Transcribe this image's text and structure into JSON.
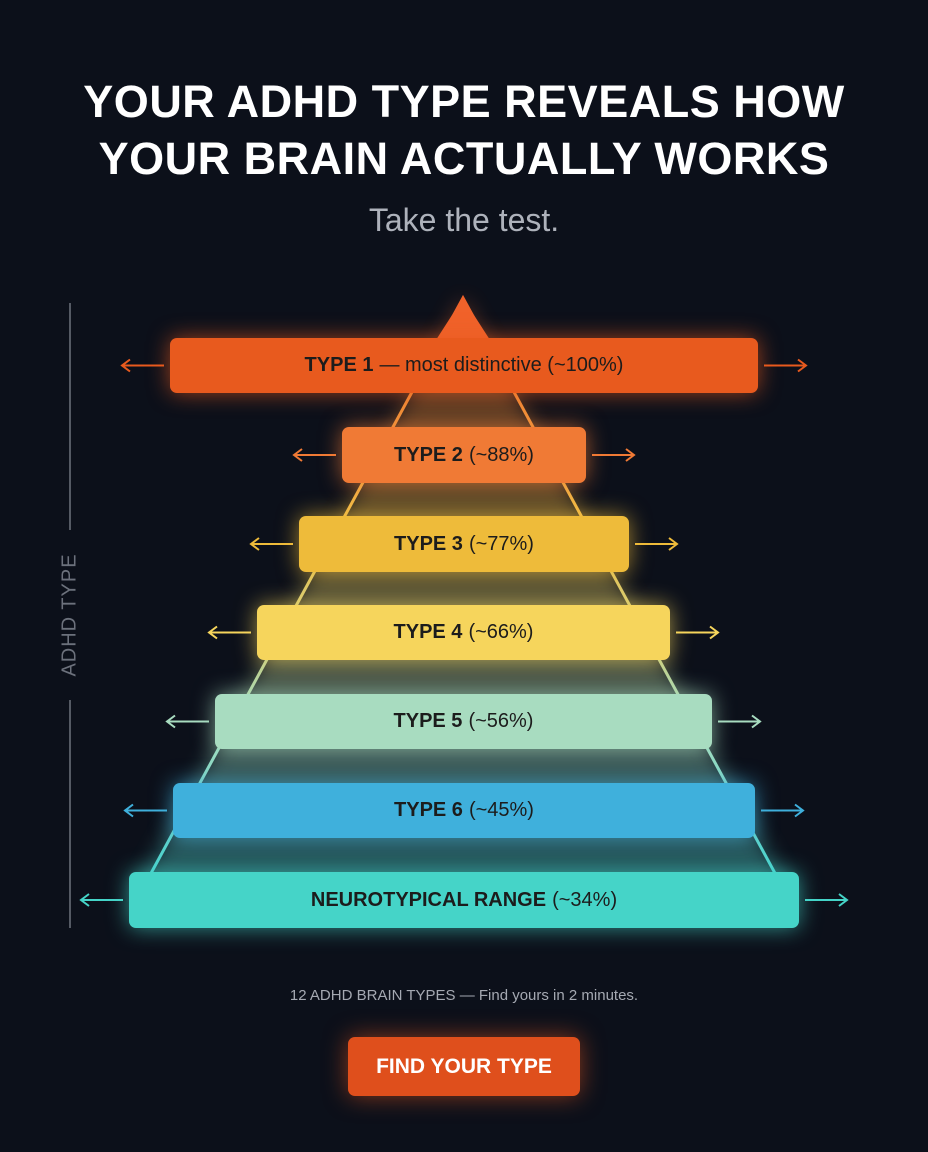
{
  "header": {
    "title_line1": "YOUR ADHD TYPE REVEALS HOW",
    "title_line2": "YOUR BRAIN ACTUALLY WORKS",
    "subtitle": "Take the test."
  },
  "axis_label": "ADHD TYPE",
  "tiers": [
    {
      "name": "TYPE 1",
      "detail": "— most distinctive (~100%)"
    },
    {
      "name": "TYPE 2",
      "detail": "(~88%)"
    },
    {
      "name": "TYPE 3",
      "detail": "(~77%)"
    },
    {
      "name": "TYPE 4",
      "detail": "(~66%)"
    },
    {
      "name": "TYPE 5",
      "detail": "(~56%)"
    },
    {
      "name": "TYPE 6",
      "detail": "(~45%)"
    },
    {
      "name": "NEUROTYPICAL RANGE",
      "detail": "(~34%)"
    }
  ],
  "footer": {
    "note": "12 ADHD BRAIN TYPES — Find yours in 2 minutes.",
    "button": "FIND YOUR TYPE"
  }
}
